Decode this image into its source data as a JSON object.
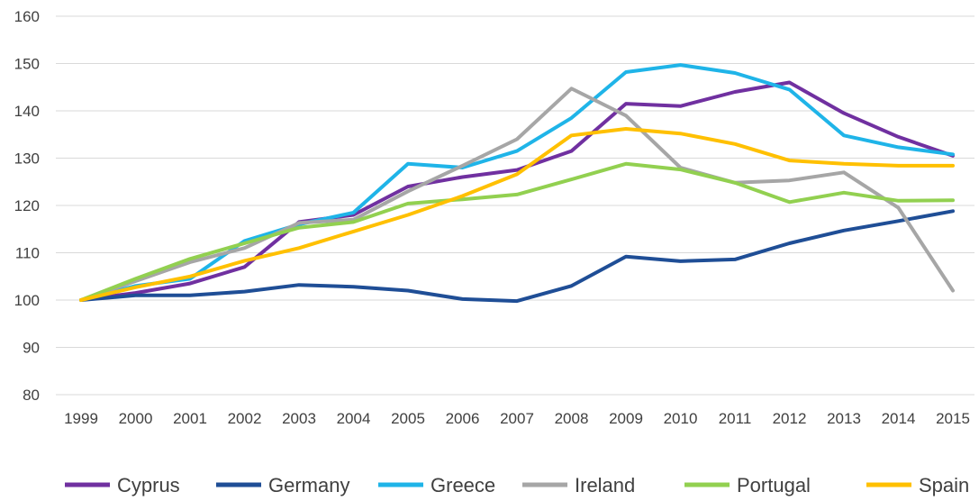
{
  "chart_data": {
    "type": "line",
    "title": "",
    "xlabel": "",
    "ylabel": "",
    "x": [
      "1999",
      "2000",
      "2001",
      "2002",
      "2003",
      "2004",
      "2005",
      "2006",
      "2007",
      "2008",
      "2009",
      "2010",
      "2011",
      "2012",
      "2013",
      "2014",
      "2015"
    ],
    "ylim": [
      80,
      160
    ],
    "yticks": [
      80,
      90,
      100,
      110,
      120,
      130,
      140,
      150,
      160
    ],
    "grid": true,
    "legend_position": "bottom",
    "series": [
      {
        "name": "Cyprus",
        "color": "#7030a0",
        "values": [
          100,
          101.5,
          103.5,
          107,
          116.5,
          118,
          124,
          126,
          127.5,
          131.5,
          141.5,
          141,
          144,
          146,
          139.5,
          134.5,
          130.5
        ]
      },
      {
        "name": "Germany",
        "color": "#1f4e96",
        "values": [
          100,
          101,
          101,
          101.8,
          103.2,
          102.8,
          102,
          100.2,
          99.8,
          103,
          109.2,
          108.2,
          108.6,
          112,
          114.7,
          116.7,
          118.8
        ]
      },
      {
        "name": "Greece",
        "color": "#1fb4e8",
        "values": [
          100,
          103,
          104.5,
          112.5,
          116,
          118.5,
          128.8,
          128,
          131.5,
          138.5,
          148.2,
          149.7,
          148,
          144.5,
          134.8,
          132.3,
          130.8
        ]
      },
      {
        "name": "Ireland",
        "color": "#a6a6a6",
        "values": [
          100,
          104,
          108,
          111,
          116.3,
          117,
          123,
          128.4,
          134,
          144.7,
          139,
          128,
          124.8,
          125.3,
          127,
          119.5,
          102
        ]
      },
      {
        "name": "Portugal",
        "color": "#92d050",
        "values": [
          100,
          104.5,
          108.7,
          112,
          115.3,
          116.5,
          120.4,
          121.3,
          122.3,
          125.5,
          128.8,
          127.6,
          124.8,
          120.7,
          122.7,
          121,
          121.1
        ]
      },
      {
        "name": "Spain",
        "color": "#ffc000",
        "values": [
          100,
          102.7,
          105,
          108.3,
          111,
          114.5,
          118,
          122,
          126.6,
          134.8,
          136.2,
          135.2,
          133,
          129.5,
          128.8,
          128.4,
          128.4
        ]
      }
    ]
  }
}
